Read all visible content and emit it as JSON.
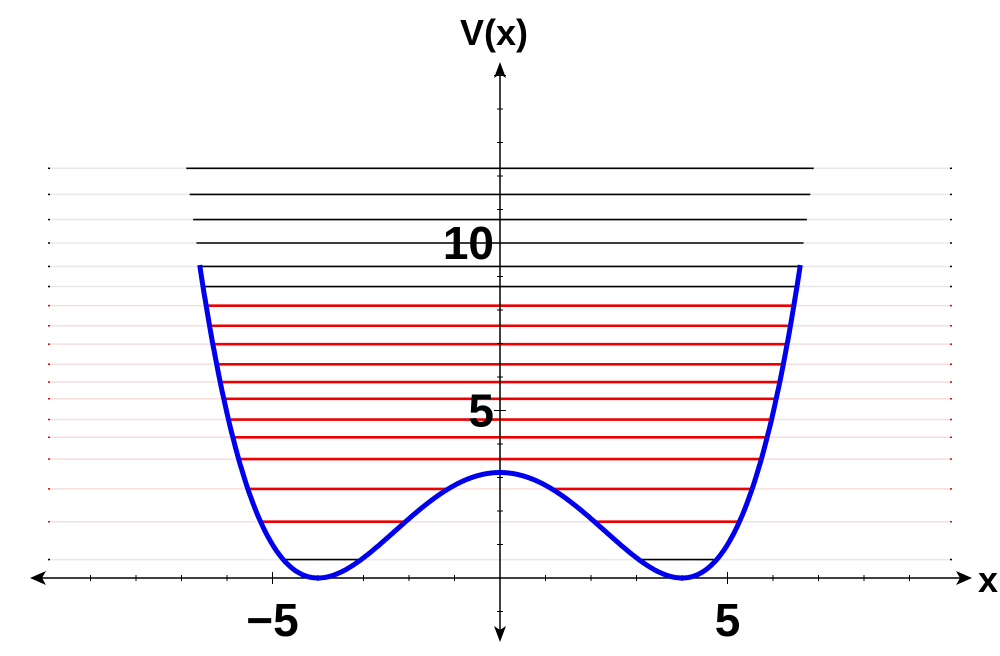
{
  "chart_data": {
    "type": "line",
    "xlabel": "x",
    "ylabel": "V(x)",
    "xlim": [
      -10,
      10
    ],
    "ylim": [
      0,
      15
    ],
    "xticks": [
      {
        "value": -5,
        "label": "−5"
      },
      {
        "value": 5,
        "label": "5"
      }
    ],
    "yticks": [
      {
        "value": 5,
        "label": "5"
      },
      {
        "value": 10,
        "label": "10"
      }
    ],
    "curve": {
      "description_formula": "V(x) = a*(x^2 - b^2)^2",
      "a": 0.0123,
      "b": 4.0,
      "color": "#0000ee"
    },
    "energy_levels": [
      {
        "E": 0.55,
        "color": "#000000"
      },
      {
        "E": 1.68,
        "color": "#ee0000"
      },
      {
        "E": 2.66,
        "color": "#ee0000"
      },
      {
        "E": 3.55,
        "color": "#ee0000"
      },
      {
        "E": 4.2,
        "color": "#ee0000"
      },
      {
        "E": 4.73,
        "color": "#ee0000"
      },
      {
        "E": 5.35,
        "color": "#ee0000"
      },
      {
        "E": 5.85,
        "color": "#ee0000"
      },
      {
        "E": 6.38,
        "color": "#ee0000"
      },
      {
        "E": 6.98,
        "color": "#ee0000"
      },
      {
        "E": 7.53,
        "color": "#ee0000"
      },
      {
        "E": 8.13,
        "color": "#ee0000"
      },
      {
        "E": 8.7,
        "color": "#000000"
      },
      {
        "E": 9.3,
        "color": "#000000"
      },
      {
        "E": 10.0,
        "color": "#000000"
      },
      {
        "E": 10.7,
        "color": "#000000"
      },
      {
        "E": 11.45,
        "color": "#000000"
      },
      {
        "E": 12.23,
        "color": "#000000"
      }
    ],
    "grid": true
  }
}
